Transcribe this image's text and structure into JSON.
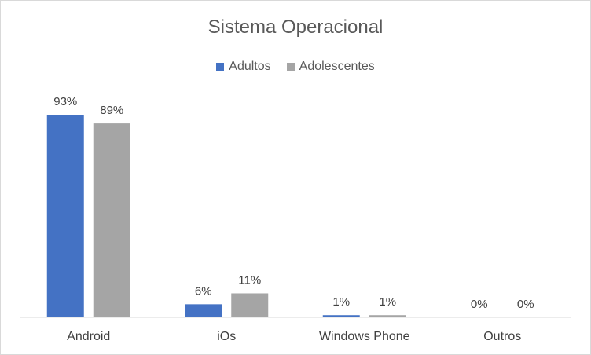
{
  "chart_data": {
    "type": "bar",
    "title": "Sistema Operacional",
    "categories": [
      "Android",
      "iOs",
      "Windows Phone",
      "Outros"
    ],
    "series": [
      {
        "name": "Adultos",
        "color": "#4472C4",
        "values": [
          93,
          6,
          1,
          0
        ],
        "labels": [
          "93%",
          "6%",
          "1%",
          "0%"
        ]
      },
      {
        "name": "Adolescentes",
        "color": "#A5A5A5",
        "values": [
          89,
          11,
          1,
          0
        ],
        "labels": [
          "89%",
          "11%",
          "1%",
          "0%"
        ]
      }
    ],
    "ylim": [
      0,
      93
    ],
    "grid": false,
    "legend_position": "top"
  }
}
